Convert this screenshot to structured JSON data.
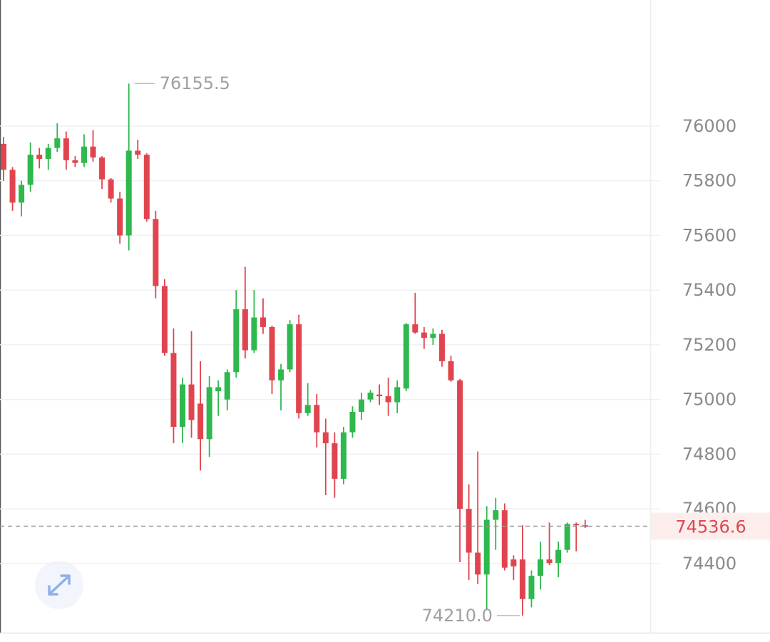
{
  "chart_data": {
    "type": "candlestick",
    "open": [
      75935,
      75840,
      75720,
      75785,
      75895,
      75880,
      75920,
      75955,
      75875,
      75865,
      75925,
      75885,
      75805,
      75735,
      75600,
      75910,
      75895,
      75660,
      75415,
      75170,
      74900,
      75055,
      74985,
      74855,
      75030,
      75000,
      75100,
      75330,
      75180,
      75300,
      75265,
      75070,
      75110,
      75275,
      74950,
      74980,
      74880,
      74840,
      74710,
      74880,
      74955,
      75000,
      75018,
      75012,
      74990,
      75040,
      75275,
      75245,
      75225,
      75240,
      75140,
      75070,
      74600,
      74440,
      74360,
      74560,
      74595,
      74415,
      74415,
      74270,
      74355,
      74415,
      74402,
      74450,
      74545,
      74540
    ],
    "high": [
      75960,
      75850,
      75800,
      75940,
      75920,
      75935,
      76010,
      75980,
      75890,
      75970,
      75985,
      75890,
      75810,
      75760,
      76155.5,
      75950,
      75900,
      75690,
      75440,
      75260,
      75080,
      75250,
      75140,
      75085,
      75070,
      75110,
      75400,
      75485,
      75400,
      75370,
      75270,
      75130,
      75290,
      75310,
      75060,
      75020,
      74930,
      74880,
      74900,
      74975,
      75025,
      75035,
      75055,
      75080,
      75070,
      75280,
      75390,
      75265,
      75260,
      75255,
      75160,
      75075,
      74690,
      74810,
      74610,
      74640,
      74620,
      74430,
      74540,
      74375,
      74480,
      74550,
      74480,
      74550,
      74550,
      74560
    ],
    "low": [
      75800,
      75690,
      75670,
      75760,
      75845,
      75840,
      75905,
      75840,
      75850,
      75850,
      75870,
      75770,
      75720,
      75570,
      75545,
      75880,
      75650,
      75370,
      75160,
      74840,
      74840,
      74860,
      74740,
      74790,
      74940,
      74960,
      75080,
      75150,
      75170,
      75240,
      75020,
      74960,
      75100,
      74930,
      74940,
      74825,
      74650,
      74640,
      74690,
      74860,
      74925,
      74990,
      74980,
      74940,
      74950,
      75030,
      75240,
      75185,
      75200,
      75120,
      75065,
      74405,
      74340,
      74325,
      74230,
      74450,
      74375,
      74340,
      74210,
      74240,
      74305,
      74395,
      74350,
      74440,
      74445,
      74530
    ],
    "close": [
      75840,
      75720,
      75785,
      75895,
      75880,
      75920,
      75955,
      75875,
      75865,
      75925,
      75885,
      75805,
      75735,
      75600,
      75910,
      75895,
      75660,
      75415,
      75170,
      74900,
      75055,
      74925,
      74855,
      75045,
      75045,
      75100,
      75330,
      75180,
      75300,
      75265,
      75070,
      75110,
      75275,
      74950,
      74980,
      74880,
      74840,
      74710,
      74880,
      74955,
      75000,
      75025,
      75012,
      74990,
      75045,
      75275,
      75245,
      75225,
      75240,
      75140,
      75070,
      74600,
      74440,
      74360,
      74560,
      74595,
      74385,
      74390,
      74270,
      74355,
      74415,
      74402,
      74450,
      74545,
      74540,
      74536.6
    ],
    "up_color": "#2eb84e",
    "down_color": "#e0454f",
    "ylim": [
      74147,
      76461
    ],
    "yticks": [
      74400,
      74600,
      74800,
      75000,
      75200,
      75400,
      75600,
      75800,
      76000
    ],
    "grid": true,
    "high_annotation": 76155.5,
    "low_annotation": {
      "value": 74210,
      "label": "74210.0"
    },
    "last_price": 74536.6
  }
}
